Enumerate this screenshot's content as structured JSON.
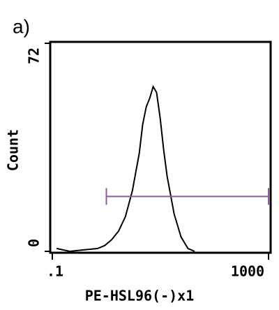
{
  "panel_label": "a)",
  "chart_data": {
    "type": "line",
    "xscale": "log",
    "xlabel": "PE-HSL96(-)x1",
    "ylabel": "Count",
    "xlim": [
      0.1,
      1000
    ],
    "xticks": [
      {
        "value": 0.1,
        "label": ".1"
      },
      1000
    ],
    "ylim": [
      0,
      72
    ],
    "yticks": [
      0,
      72
    ],
    "series": [
      {
        "color": "#000000",
        "x": [
          0.12,
          0.21,
          0.38,
          0.69,
          0.93,
          1.25,
          1.68,
          2.25,
          3.03,
          4.07,
          4.7,
          5.47,
          6.34,
          7.35,
          8.5,
          9.9,
          11.5,
          13.3,
          17.9,
          24,
          32.3,
          43
        ],
        "values": [
          1,
          0,
          0.5,
          1,
          2,
          4,
          7,
          12,
          21,
          34,
          44,
          50,
          53,
          57,
          55,
          46,
          35,
          26,
          13,
          5,
          1,
          0
        ]
      }
    ],
    "gate": {
      "x": [
        1,
        1000
      ],
      "y": 19,
      "color": "#8e5a9e"
    }
  }
}
